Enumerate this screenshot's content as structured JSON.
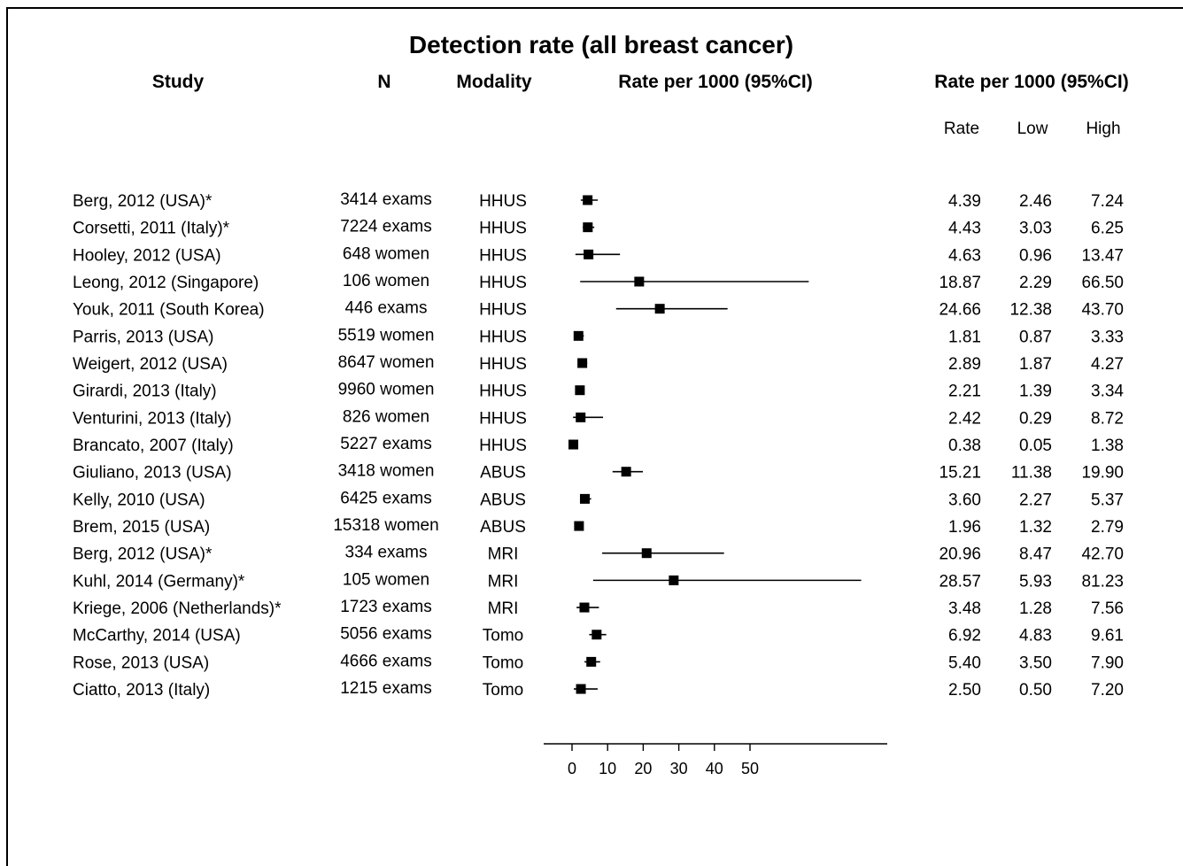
{
  "chart_data": {
    "type": "forest",
    "title": "Detection rate (all breast cancer)",
    "columns": {
      "study": "Study",
      "n": "N",
      "modality": "Modality",
      "plot": "Rate per 1000 (95%CI)",
      "table": "Rate per 1000 (95%CI)",
      "rate": "Rate",
      "low": "Low",
      "high": "High"
    },
    "x_ticks": [
      "0",
      "10",
      "20",
      "30",
      "40",
      "50"
    ],
    "x_tick_values": [
      0,
      10,
      20,
      30,
      40,
      50
    ],
    "rows": [
      {
        "study": "Berg, 2012 (USA)*",
        "n": "3414 exams",
        "modality": "HHUS",
        "rate": 4.39,
        "low": 2.46,
        "high": 7.24,
        "rate_text": "4.39",
        "low_text": "2.46",
        "high_text": "7.24"
      },
      {
        "study": "Corsetti, 2011 (Italy)*",
        "n": "7224 exams",
        "modality": "HHUS",
        "rate": 4.43,
        "low": 3.03,
        "high": 6.25,
        "rate_text": "4.43",
        "low_text": "3.03",
        "high_text": "6.25"
      },
      {
        "study": "Hooley, 2012 (USA)",
        "n": "648 women",
        "modality": "HHUS",
        "rate": 4.63,
        "low": 0.96,
        "high": 13.47,
        "rate_text": "4.63",
        "low_text": "0.96",
        "high_text": "13.47"
      },
      {
        "study": "Leong, 2012 (Singapore)",
        "n": "106 women",
        "modality": "HHUS",
        "rate": 18.87,
        "low": 2.29,
        "high": 66.5,
        "rate_text": "18.87",
        "low_text": "2.29",
        "high_text": "66.50"
      },
      {
        "study": "Youk, 2011 (South Korea)",
        "n": "446 exams",
        "modality": "HHUS",
        "rate": 24.66,
        "low": 12.38,
        "high": 43.7,
        "rate_text": "24.66",
        "low_text": "12.38",
        "high_text": "43.70"
      },
      {
        "study": "Parris, 2013 (USA)",
        "n": "5519 women",
        "modality": "HHUS",
        "rate": 1.81,
        "low": 0.87,
        "high": 3.33,
        "rate_text": "1.81",
        "low_text": "0.87",
        "high_text": "3.33"
      },
      {
        "study": "Weigert, 2012 (USA)",
        "n": "8647 women",
        "modality": "HHUS",
        "rate": 2.89,
        "low": 1.87,
        "high": 4.27,
        "rate_text": "2.89",
        "low_text": "1.87",
        "high_text": "4.27"
      },
      {
        "study": "Girardi, 2013 (Italy)",
        "n": "9960 women",
        "modality": "HHUS",
        "rate": 2.21,
        "low": 1.39,
        "high": 3.34,
        "rate_text": "2.21",
        "low_text": "1.39",
        "high_text": "3.34"
      },
      {
        "study": "Venturini, 2013 (Italy)",
        "n": "826 women",
        "modality": "HHUS",
        "rate": 2.42,
        "low": 0.29,
        "high": 8.72,
        "rate_text": "2.42",
        "low_text": "0.29",
        "high_text": "8.72"
      },
      {
        "study": "Brancato, 2007 (Italy)",
        "n": "5227 exams",
        "modality": "HHUS",
        "rate": 0.38,
        "low": 0.05,
        "high": 1.38,
        "rate_text": "0.38",
        "low_text": "0.05",
        "high_text": "1.38"
      },
      {
        "study": "Giuliano, 2013 (USA)",
        "n": "3418 women",
        "modality": "ABUS",
        "rate": 15.21,
        "low": 11.38,
        "high": 19.9,
        "rate_text": "15.21",
        "low_text": "11.38",
        "high_text": "19.90"
      },
      {
        "study": "Kelly, 2010 (USA)",
        "n": "6425 exams",
        "modality": "ABUS",
        "rate": 3.6,
        "low": 2.27,
        "high": 5.37,
        "rate_text": "3.60",
        "low_text": "2.27",
        "high_text": "5.37"
      },
      {
        "study": "Brem, 2015 (USA)",
        "n": "15318 women",
        "modality": "ABUS",
        "rate": 1.96,
        "low": 1.32,
        "high": 2.79,
        "rate_text": "1.96",
        "low_text": "1.32",
        "high_text": "2.79"
      },
      {
        "study": "Berg, 2012 (USA)*",
        "n": "334 exams",
        "modality": "MRI",
        "rate": 20.96,
        "low": 8.47,
        "high": 42.7,
        "rate_text": "20.96",
        "low_text": "8.47",
        "high_text": "42.70"
      },
      {
        "study": "Kuhl, 2014 (Germany)*",
        "n": "105 women",
        "modality": "MRI",
        "rate": 28.57,
        "low": 5.93,
        "high": 81.23,
        "rate_text": "28.57",
        "low_text": "5.93",
        "high_text": "81.23"
      },
      {
        "study": "Kriege, 2006 (Netherlands)*",
        "n": "1723 exams",
        "modality": "MRI",
        "rate": 3.48,
        "low": 1.28,
        "high": 7.56,
        "rate_text": "3.48",
        "low_text": "1.28",
        "high_text": "7.56"
      },
      {
        "study": "McCarthy, 2014 (USA)",
        "n": "5056 exams",
        "modality": "Tomo",
        "rate": 6.92,
        "low": 4.83,
        "high": 9.61,
        "rate_text": "6.92",
        "low_text": "4.83",
        "high_text": "9.61"
      },
      {
        "study": "Rose, 2013 (USA)",
        "n": "4666 exams",
        "modality": "Tomo",
        "rate": 5.4,
        "low": 3.5,
        "high": 7.9,
        "rate_text": "5.40",
        "low_text": "3.50",
        "high_text": "7.90"
      },
      {
        "study": "Ciatto, 2013 (Italy)",
        "n": "1215 exams",
        "modality": "Tomo",
        "rate": 2.5,
        "low": 0.5,
        "high": 7.2,
        "rate_text": "2.50",
        "low_text": "0.50",
        "high_text": "7.20"
      }
    ]
  }
}
